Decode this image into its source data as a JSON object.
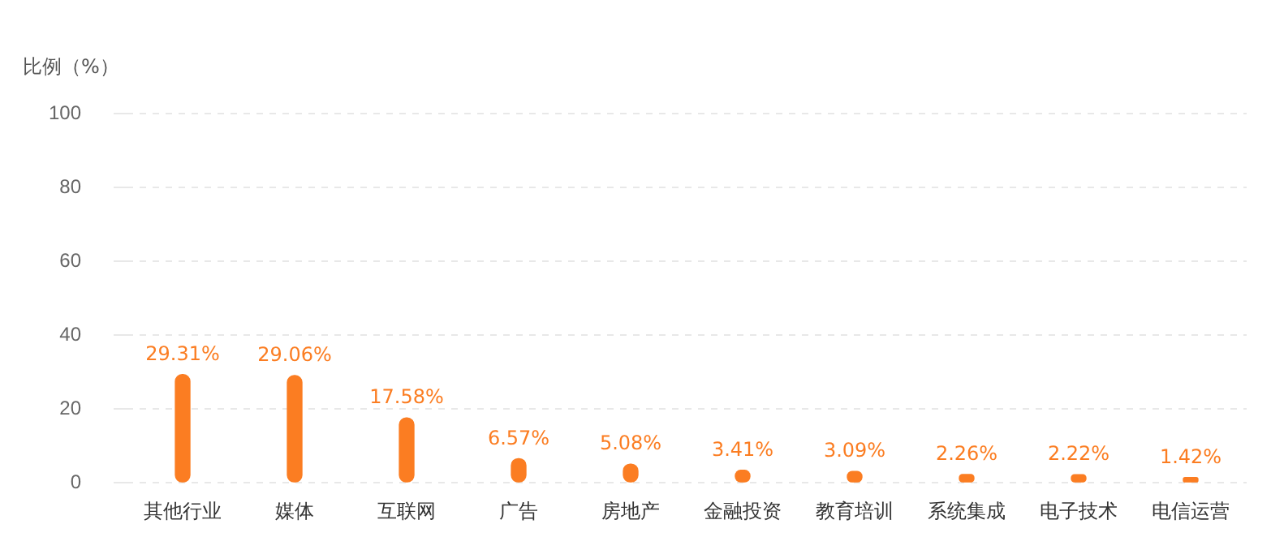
{
  "chart_data": {
    "type": "bar",
    "ylabel": "比例（%）",
    "categories": [
      "其他行业",
      "媒体",
      "互联网",
      "广告",
      "房地产",
      "金融投资",
      "教育培训",
      "系统集成",
      "电子技术",
      "电信运营"
    ],
    "values": [
      29.31,
      29.06,
      17.58,
      6.57,
      5.08,
      3.41,
      3.09,
      2.26,
      2.22,
      1.42
    ],
    "value_labels": [
      "29.31%",
      "29.06%",
      "17.58%",
      "6.57%",
      "5.08%",
      "3.41%",
      "3.09%",
      "2.26%",
      "2.22%",
      "1.42%"
    ],
    "color": "#fb7d22",
    "ylim": [
      0,
      100
    ],
    "yticks": [
      0,
      20,
      40,
      60,
      80,
      100
    ],
    "grid": "y",
    "legend": false
  }
}
